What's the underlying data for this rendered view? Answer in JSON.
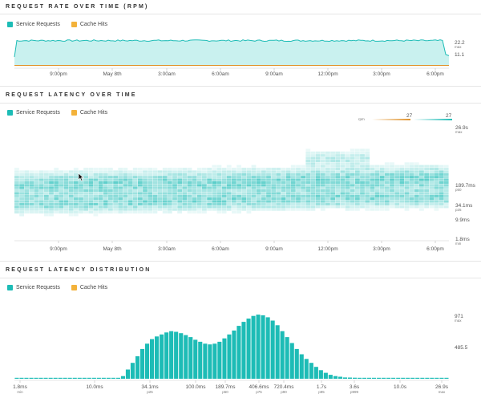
{
  "sections": {
    "rate_title": "REQUEST RATE OVER TIME (RPM)",
    "latency_title": "REQUEST LATENCY OVER TIME",
    "dist_title": "REQUEST LATENCY DISTRIBUTION"
  },
  "legend": {
    "service": "Service Requests",
    "cache": "Cache Hits"
  },
  "colors": {
    "service": "#1dbcb6",
    "service_fill": "#c9f1ef",
    "cache": "#f3b23a",
    "cache_line": "#e0922b"
  },
  "time_ticks": [
    "9:00pm",
    "May 8th",
    "3:00am",
    "6:00am",
    "9:00am",
    "12:00pm",
    "3:00pm",
    "6:00pm"
  ],
  "rate_axis": {
    "max_value": "22.2",
    "max_label": "max",
    "mid_value": "11.1"
  },
  "latency_axis": [
    {
      "value": "26.9s",
      "sub": "max"
    },
    {
      "value": "189.7ms",
      "sub": "p50"
    },
    {
      "value": "34.1ms",
      "sub": "p25"
    },
    {
      "value": "9.9ms",
      "sub": ""
    },
    {
      "value": "1.8ms",
      "sub": "min"
    }
  ],
  "rpm_legend": {
    "label": "rpm",
    "cache_value": "27",
    "service_value": "27"
  },
  "dist_axis": {
    "max_value": "971",
    "max_label": "max",
    "mid_value": "485.5"
  },
  "dist_ticks": [
    {
      "value": "1.8ms",
      "sub": "min"
    },
    {
      "value": "10.0ms",
      "sub": ""
    },
    {
      "value": "34.1ms",
      "sub": "p25"
    },
    {
      "value": "100.0ms",
      "sub": ""
    },
    {
      "value": "189.7ms",
      "sub": "p50"
    },
    {
      "value": "406.6ms",
      "sub": "p75"
    },
    {
      "value": "720.4ms",
      "sub": "p90"
    },
    {
      "value": "1.7s",
      "sub": "p95"
    },
    {
      "value": "3.6s",
      "sub": "p999"
    },
    {
      "value": "10.0s",
      "sub": ""
    },
    {
      "value": "26.9s",
      "sub": "max"
    }
  ],
  "chart_data": [
    {
      "type": "area",
      "title": "REQUEST RATE OVER TIME (RPM)",
      "x": [
        "9:00pm",
        "May 8th",
        "3:00am",
        "6:00am",
        "9:00am",
        "12:00pm",
        "3:00pm",
        "6:00pm"
      ],
      "ylim": [
        0,
        22.2
      ],
      "series": [
        {
          "name": "Service Requests",
          "level": 20.5
        },
        {
          "name": "Cache Hits",
          "level": 0.3
        }
      ]
    },
    {
      "type": "heatmap",
      "title": "REQUEST LATENCY OVER TIME",
      "ylim": [
        "1.8ms",
        "26.9s"
      ],
      "series": [
        {
          "name": "Service Requests"
        },
        {
          "name": "Cache Hits"
        }
      ]
    },
    {
      "type": "bar",
      "title": "REQUEST LATENCY DISTRIBUTION",
      "ylim": [
        0,
        971
      ],
      "values": [
        14,
        14,
        14,
        14,
        14,
        14,
        14,
        14,
        14,
        14,
        14,
        14,
        14,
        14,
        14,
        14,
        14,
        14,
        14,
        14,
        14,
        14,
        40,
        140,
        240,
        340,
        450,
        530,
        600,
        640,
        670,
        700,
        720,
        710,
        690,
        660,
        630,
        590,
        560,
        530,
        520,
        530,
        560,
        610,
        670,
        730,
        800,
        860,
        910,
        950,
        970,
        960,
        930,
        880,
        810,
        720,
        630,
        540,
        450,
        370,
        300,
        240,
        180,
        130,
        90,
        60,
        40,
        30,
        20,
        18,
        16,
        14,
        14,
        14,
        14,
        14,
        14,
        14,
        14,
        14,
        14,
        14,
        14,
        14,
        14,
        14,
        14,
        14,
        14,
        14
      ]
    }
  ]
}
